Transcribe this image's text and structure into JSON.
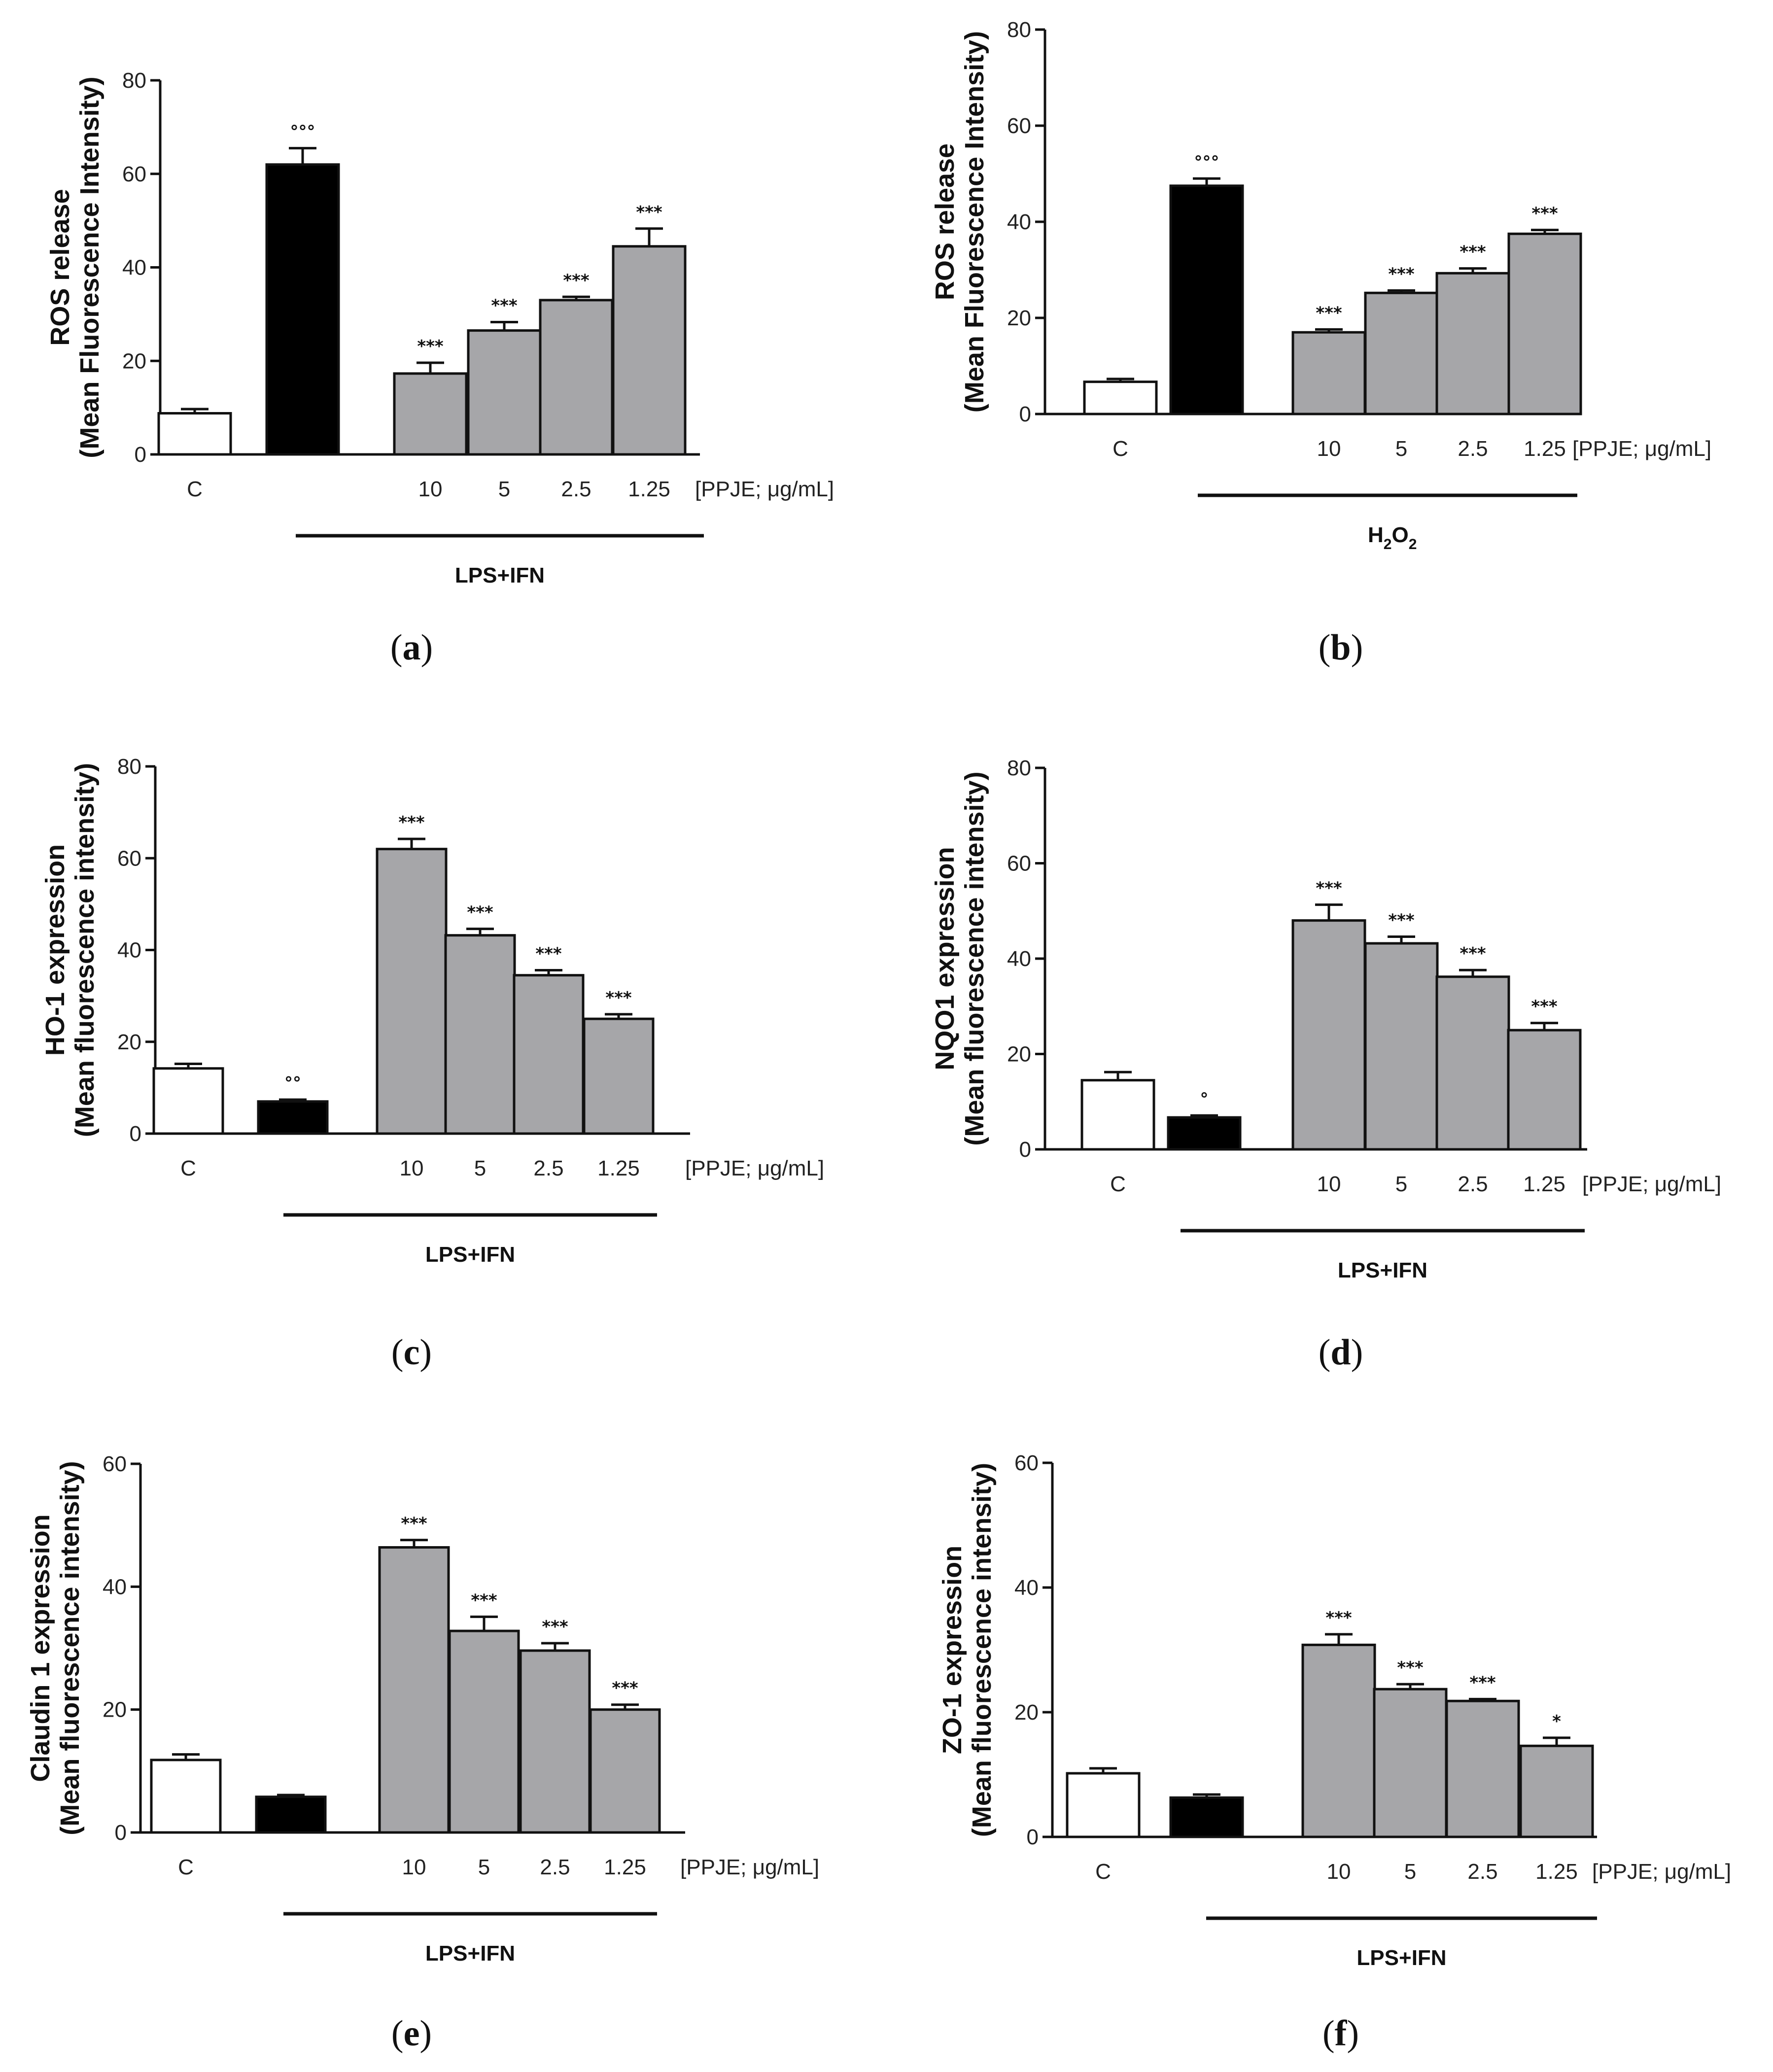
{
  "chart_data": [
    {
      "id": "a",
      "type": "bar",
      "caption_letter": "a",
      "ylabel": "ROS release",
      "ylabel2": "(Mean Fluorescence Intensity)",
      "ylim": [
        0,
        80
      ],
      "ticks": [
        0,
        20,
        40,
        60,
        80
      ],
      "categories": [
        "C",
        "",
        "10",
        "5",
        "2.5",
        "1.25"
      ],
      "values": [
        8.8,
        62.0,
        17.3,
        26.5,
        33.0,
        44.5
      ],
      "errors": [
        0.9,
        3.5,
        2.3,
        1.8,
        0.7,
        3.8
      ],
      "significance": [
        "",
        "°°°",
        "***",
        "***",
        "***",
        "***"
      ],
      "fills": [
        "#ffffff",
        "#000000",
        "#a6a6a9",
        "#a6a6a9",
        "#a6a6a9",
        "#a6a6a9"
      ],
      "unit_label": "[PPJE; μg/mL]",
      "group_label": "LPS+IFN",
      "group_sub": ""
    },
    {
      "id": "b",
      "type": "bar",
      "caption_letter": "b",
      "ylabel": "ROS release",
      "ylabel2": "(Mean Fluorescence Intensity)",
      "ylim": [
        0,
        80
      ],
      "ticks": [
        0,
        20,
        40,
        60,
        80
      ],
      "categories": [
        "C",
        "",
        "10",
        "5",
        "2.5",
        "1.25"
      ],
      "values": [
        6.7,
        47.5,
        17.0,
        25.2,
        29.3,
        37.5
      ],
      "errors": [
        0.6,
        1.5,
        0.6,
        0.5,
        1.0,
        0.8
      ],
      "significance": [
        "",
        "°°°",
        "***",
        "***",
        "***",
        "***"
      ],
      "fills": [
        "#ffffff",
        "#000000",
        "#a6a6a9",
        "#a6a6a9",
        "#a6a6a9",
        "#a6a6a9"
      ],
      "unit_label": "[PPJE; μg/mL]",
      "group_label": "H",
      "group_sub": "2",
      "group_label_mid": "O",
      "group_sub2": "2"
    },
    {
      "id": "c",
      "type": "bar",
      "caption_letter": "c",
      "ylabel": "HO-1 expression",
      "ylabel2": "(Mean fluorescence intensity)",
      "ylim": [
        0,
        80
      ],
      "ticks": [
        0,
        20,
        40,
        60,
        80
      ],
      "categories": [
        "C",
        "",
        "10",
        "5",
        "2.5",
        "1.25"
      ],
      "values": [
        14.2,
        7.0,
        62.0,
        43.2,
        34.5,
        25.0
      ],
      "errors": [
        1.0,
        0.4,
        2.2,
        1.4,
        1.1,
        1.0
      ],
      "significance": [
        "",
        "°°",
        "***",
        "***",
        "***",
        "***"
      ],
      "fills": [
        "#ffffff",
        "#000000",
        "#a6a6a9",
        "#a6a6a9",
        "#a6a6a9",
        "#a6a6a9"
      ],
      "unit_label": "[PPJE; μg/mL]",
      "group_label": "LPS+IFN",
      "group_sub": ""
    },
    {
      "id": "d",
      "type": "bar",
      "caption_letter": "d",
      "ylabel": "NQO1 expression",
      "ylabel2": "(Mean fluorescence intensity)",
      "ylim": [
        0,
        80
      ],
      "ticks": [
        0,
        20,
        40,
        60,
        80
      ],
      "categories": [
        "C",
        "",
        "10",
        "5",
        "2.5",
        "1.25"
      ],
      "values": [
        14.5,
        6.7,
        48.0,
        43.2,
        36.2,
        25.0
      ],
      "errors": [
        1.7,
        0.4,
        3.3,
        1.4,
        1.4,
        1.5
      ],
      "significance": [
        "",
        "°",
        "***",
        "***",
        "***",
        "***"
      ],
      "fills": [
        "#ffffff",
        "#000000",
        "#a6a6a9",
        "#a6a6a9",
        "#a6a6a9",
        "#a6a6a9"
      ],
      "unit_label": "[PPJE; μg/mL]",
      "group_label": "LPS+IFN",
      "group_sub": ""
    },
    {
      "id": "e",
      "type": "bar",
      "caption_letter": "e",
      "ylabel": "Claudin 1 expression",
      "ylabel2": "(Mean fluorescence intensity)",
      "ylim": [
        0,
        60
      ],
      "ticks": [
        0,
        20,
        40,
        60
      ],
      "categories": [
        "C",
        "",
        "10",
        "5",
        "2.5",
        "1.25"
      ],
      "values": [
        11.8,
        5.8,
        46.4,
        32.8,
        29.6,
        20.0
      ],
      "errors": [
        0.9,
        0.3,
        1.2,
        2.3,
        1.2,
        0.8
      ],
      "significance": [
        "",
        "",
        "***",
        "***",
        "***",
        "***"
      ],
      "fills": [
        "#ffffff",
        "#000000",
        "#a6a6a9",
        "#a6a6a9",
        "#a6a6a9",
        "#a6a6a9"
      ],
      "unit_label": "[PPJE; μg/mL]",
      "group_label": "LPS+IFN",
      "group_sub": ""
    },
    {
      "id": "f",
      "type": "bar",
      "caption_letter": "f",
      "ylabel": "ZO-1 expression",
      "ylabel2": "(Mean fluorescence intensity)",
      "ylim": [
        0,
        60
      ],
      "ticks": [
        0,
        20,
        40,
        60
      ],
      "categories": [
        "C",
        "",
        "10",
        "5",
        "2.5",
        "1.25"
      ],
      "values": [
        10.2,
        6.3,
        30.8,
        23.7,
        21.8,
        14.6
      ],
      "errors": [
        0.8,
        0.5,
        1.7,
        0.8,
        0.3,
        1.3
      ],
      "significance": [
        "",
        "",
        "***",
        "***",
        "***",
        "*"
      ],
      "fills": [
        "#ffffff",
        "#000000",
        "#a6a6a9",
        "#a6a6a9",
        "#a6a6a9",
        "#a6a6a9"
      ],
      "unit_label": "[PPJE; μg/mL]",
      "group_label": "LPS+IFN",
      "group_sub": ""
    }
  ]
}
